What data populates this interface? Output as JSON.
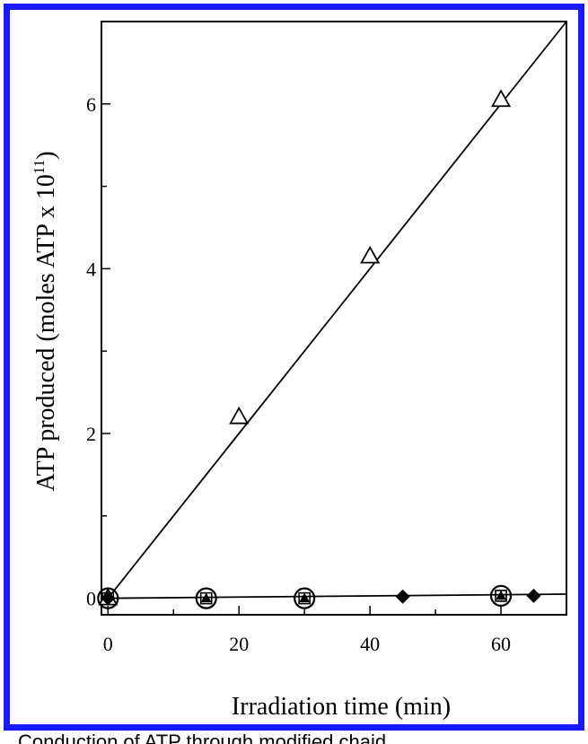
{
  "chart_data": {
    "type": "scatter",
    "title": "",
    "xlabel": "Irradiation time (min)",
    "ylabel": {
      "prefix": "ATP produced (moles ATP x 10",
      "superscript": "11",
      "suffix": ")"
    },
    "xlim": [
      -1,
      70
    ],
    "ylim": [
      -0.2,
      7.0
    ],
    "x_ticks": [
      0,
      20,
      40,
      60
    ],
    "x_tick_labels": [
      "0",
      "20",
      "40",
      "60"
    ],
    "x_minor_ticks": [
      10,
      30,
      50
    ],
    "y_ticks": [
      0,
      2,
      4,
      6
    ],
    "y_tick_labels": [
      "0",
      "2",
      "4",
      "6"
    ],
    "y_minor_ticks": [
      1,
      3,
      5
    ],
    "grid": false,
    "series": [
      {
        "marker": "triangle-open",
        "points": [
          [
            0,
            0
          ],
          [
            20,
            2.2
          ],
          [
            40,
            4.15
          ],
          [
            60,
            6.05
          ]
        ]
      },
      {
        "marker": "circle-open",
        "points": [
          [
            0,
            0
          ],
          [
            15,
            0.0
          ],
          [
            30,
            0.0
          ],
          [
            60,
            0.03
          ]
        ]
      },
      {
        "marker": "triangle-filled-small",
        "points": [
          [
            0,
            0
          ],
          [
            15,
            0.0
          ],
          [
            30,
            0.0
          ],
          [
            60,
            0.03
          ]
        ]
      },
      {
        "marker": "square-open-small",
        "points": [
          [
            0,
            0
          ],
          [
            15,
            0.0
          ],
          [
            30,
            0.0
          ],
          [
            60,
            0.03
          ]
        ]
      },
      {
        "marker": "diamond-filled",
        "points": [
          [
            0,
            0
          ],
          [
            45,
            0.02
          ],
          [
            65,
            0.03
          ]
        ]
      }
    ],
    "fit_lines": [
      {
        "points": [
          [
            0,
            0
          ],
          [
            70,
            7.0
          ]
        ]
      },
      {
        "points": [
          [
            0,
            0
          ],
          [
            70,
            0.05
          ]
        ]
      }
    ],
    "colors": {
      "frame": "#1a1aff",
      "ink": "#000000"
    }
  },
  "caption_fragment": "Conduction of ATP through modified chaid"
}
